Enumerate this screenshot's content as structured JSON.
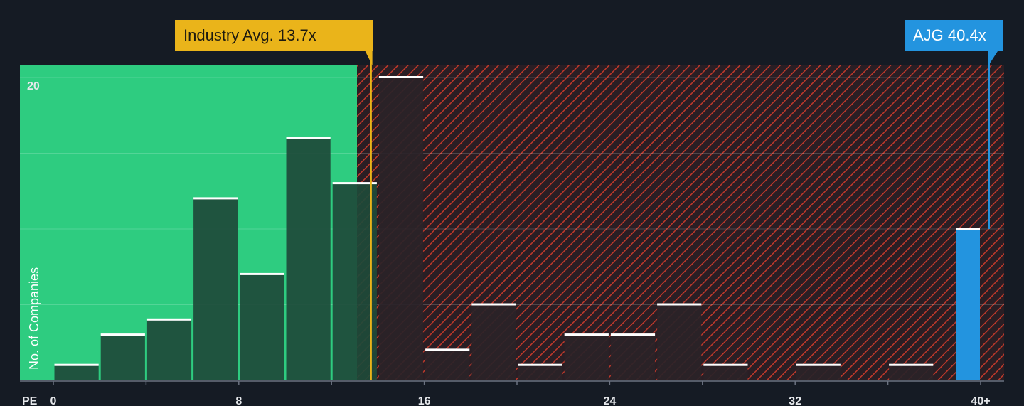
{
  "chart_data": {
    "type": "bar",
    "xlabel": "PE",
    "ylabel": "No. of Companies",
    "x_ticks": [
      "0",
      "8",
      "16",
      "24",
      "32",
      "40+"
    ],
    "y_ticks": [
      "20"
    ],
    "xlim": [
      0,
      41
    ],
    "ylim": [
      0,
      20.7
    ],
    "bin_width": 2,
    "bins": [
      {
        "start": 0,
        "count": 1
      },
      {
        "start": 2,
        "count": 3
      },
      {
        "start": 4,
        "count": 4
      },
      {
        "start": 6,
        "count": 12
      },
      {
        "start": 8,
        "count": 7
      },
      {
        "start": 10,
        "count": 16
      },
      {
        "start": 12,
        "count": 13
      },
      {
        "start": 14,
        "count": 20
      },
      {
        "start": 16,
        "count": 2
      },
      {
        "start": 18,
        "count": 5
      },
      {
        "start": 20,
        "count": 1
      },
      {
        "start": 22,
        "count": 3
      },
      {
        "start": 24,
        "count": 3
      },
      {
        "start": 26,
        "count": 5
      },
      {
        "start": 28,
        "count": 1
      },
      {
        "start": 30,
        "count": 0
      },
      {
        "start": 32,
        "count": 1
      },
      {
        "start": 34,
        "count": 0
      },
      {
        "start": 36,
        "count": 1
      },
      {
        "start": 38,
        "count": 0
      },
      {
        "start": 40,
        "count": 10,
        "highlight": true
      }
    ],
    "industry_avg": {
      "value": 13.7,
      "label": "Industry Avg. 13.7x"
    },
    "company": {
      "ticker": "AJG",
      "value": 40.4,
      "label": "AJG 40.4x"
    },
    "colors": {
      "background": "#151b24",
      "good_zone": "#2ecc80",
      "bad_zone": "#c0392b",
      "bar_good": "#1e4a3a",
      "bar_bad": "#2a2328",
      "bar_top": "#ffffff",
      "industry": "#eab41a",
      "company": "#2394df"
    }
  }
}
